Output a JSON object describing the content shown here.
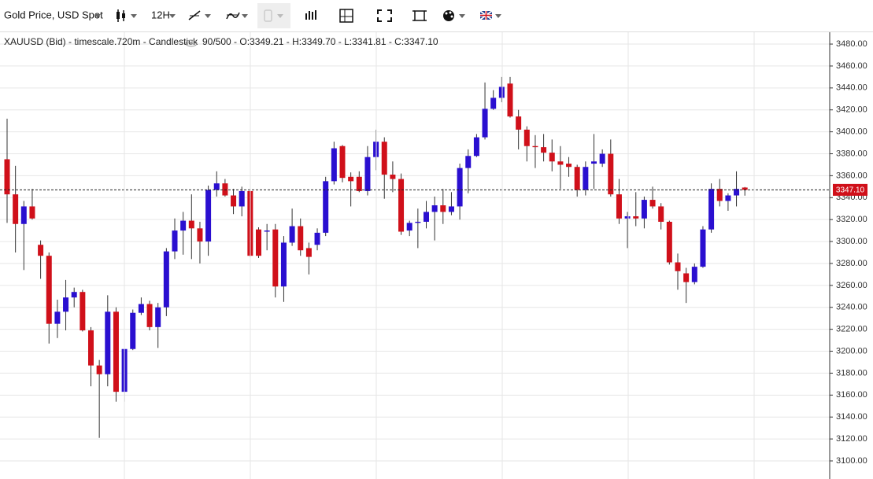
{
  "toolbar": {
    "symbol": "Gold Price, USD Spot",
    "interval": "12H"
  },
  "chart_data": {
    "type": "candlestick",
    "title": "XAUUSD (Bid) - timescale.720m - Candlestick",
    "info": "90/500 - O:3349.21 - H:3349.70 - L:3341.81 - C:3347.10",
    "up_color": "#2a0fd0",
    "down_color": "#d0101a",
    "open": [
      3375,
      3343,
      3316,
      3332,
      3297,
      3287,
      3225,
      3236,
      3249,
      3254,
      3219,
      3187,
      3179,
      3236,
      3163,
      3202,
      3235,
      3243,
      3222,
      3240,
      3291,
      3310,
      3319,
      3312,
      3300,
      3347,
      3353,
      3342,
      3332,
      3346,
      3311,
      3309,
      3311,
      3259,
      3299,
      3314,
      3294,
      3297,
      3308,
      3355,
      3387,
      3359,
      3359,
      3346,
      3377,
      3391,
      3361,
      3357,
      3310,
      3317,
      3318,
      3327,
      3333,
      3327,
      3332,
      3367,
      3378,
      3395,
      3421,
      3431,
      3444,
      3414,
      3402,
      3387,
      3386,
      3381,
      3373,
      3371,
      3368,
      3347,
      3371,
      3371,
      3380,
      3343,
      3321,
      3323,
      3321,
      3338,
      3332,
      3318,
      3281,
      3271,
      3263,
      3277,
      3311,
      3348,
      3337,
      3342,
      3349.21
    ],
    "high": [
      3412,
      3369,
      3337,
      3348,
      3301,
      3290,
      3247,
      3265,
      3258,
      3256,
      3222,
      3192,
      3251,
      3240,
      3202,
      3238,
      3249,
      3246,
      3244,
      3294,
      3321,
      3327,
      3343,
      3318,
      3351,
      3364,
      3357,
      3348,
      3350,
      3348,
      3313,
      3316,
      3316,
      3305,
      3330,
      3321,
      3299,
      3312,
      3359,
      3391,
      3388,
      3363,
      3364,
      3387,
      3402,
      3395,
      3373,
      3362,
      3319,
      3330,
      3337,
      3341,
      3348,
      3345,
      3371,
      3384,
      3398,
      3445,
      3438,
      3450,
      3450,
      3420,
      3405,
      3397,
      3398,
      3393,
      3387,
      3377,
      3370,
      3373,
      3398,
      3384,
      3393,
      3357,
      3327,
      3345,
      3341,
      3350,
      3335,
      3319,
      3289,
      3276,
      3280,
      3314,
      3353,
      3357,
      3344,
      3364,
      3349.7
    ],
    "low": [
      3317,
      3290,
      3274,
      3320,
      3266,
      3207,
      3212,
      3219,
      3240,
      3218,
      3168,
      3121,
      3168,
      3154,
      3154,
      3201,
      3233,
      3219,
      3203,
      3232,
      3284,
      3288,
      3284,
      3280,
      3287,
      3341,
      3341,
      3325,
      3323,
      3286,
      3285,
      3292,
      3249,
      3245,
      3296,
      3287,
      3270,
      3292,
      3305,
      3352,
      3354,
      3332,
      3345,
      3342,
      3365,
      3339,
      3345,
      3306,
      3305,
      3294,
      3312,
      3301,
      3316,
      3324,
      3320,
      3344,
      3377,
      3393,
      3420,
      3427,
      3413,
      3384,
      3373,
      3367,
      3373,
      3364,
      3348,
      3359,
      3341,
      3342,
      3348,
      3368,
      3341,
      3316,
      3294,
      3314,
      3312,
      3330,
      3311,
      3279,
      3256,
      3244,
      3261,
      3276,
      3308,
      3332,
      3328,
      3332,
      3341.81
    ],
    "close": [
      3343,
      3316,
      3332,
      3321,
      3287,
      3225,
      3236,
      3249,
      3254,
      3219,
      3187,
      3179,
      3236,
      3163,
      3202,
      3235,
      3243,
      3222,
      3240,
      3291,
      3310,
      3319,
      3312,
      3300,
      3347,
      3353,
      3342,
      3332,
      3346,
      3287,
      3287,
      3310,
      3259,
      3299,
      3314,
      3292,
      3286,
      3308,
      3355,
      3385,
      3358,
      3355,
      3346,
      3377,
      3391,
      3361,
      3357,
      3309,
      3317,
      3318,
      3327,
      3333,
      3327,
      3332,
      3367,
      3378,
      3395,
      3421,
      3431,
      3441,
      3414,
      3402,
      3387,
      3386,
      3381,
      3373,
      3370,
      3368,
      3347,
      3368,
      3373,
      3380,
      3343,
      3321,
      3323,
      3321,
      3338,
      3332,
      3318,
      3281,
      3273,
      3263,
      3277,
      3311,
      3348,
      3337,
      3342,
      3348,
      3347.1
    ],
    "ylim": [
      3083.5,
      3491.5
    ],
    "yticks": [
      {
        "value": 3100,
        "label": "3100.00"
      },
      {
        "value": 3120,
        "label": "3120.00"
      },
      {
        "value": 3140,
        "label": "3140.00"
      },
      {
        "value": 3160,
        "label": "3160.00"
      },
      {
        "value": 3180,
        "label": "3180.00"
      },
      {
        "value": 3200,
        "label": "3200.00"
      },
      {
        "value": 3220,
        "label": "3220.00"
      },
      {
        "value": 3240,
        "label": "3240.00"
      },
      {
        "value": 3260,
        "label": "3260.00"
      },
      {
        "value": 3280,
        "label": "3280.00"
      },
      {
        "value": 3300,
        "label": "3300.00"
      },
      {
        "value": 3320,
        "label": "3320.00"
      },
      {
        "value": 3340,
        "label": "3340.00"
      },
      {
        "value": 3360,
        "label": "3360.00"
      },
      {
        "value": 3380,
        "label": "3380.00"
      },
      {
        "value": 3400,
        "label": "3400.00"
      },
      {
        "value": 3420,
        "label": "3420.00"
      },
      {
        "value": 3440,
        "label": "3440.00"
      },
      {
        "value": 3460,
        "label": "3460.00"
      },
      {
        "value": 3480,
        "label": "3480.00"
      }
    ],
    "last_price_label": "3347.10",
    "grid": true
  }
}
